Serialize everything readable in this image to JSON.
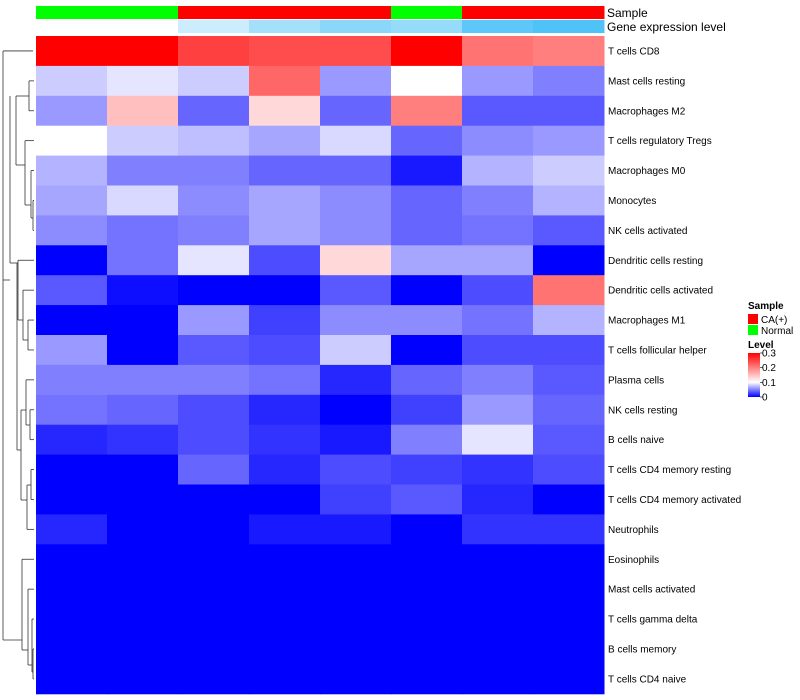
{
  "chart_data": {
    "type": "heatmap",
    "annotation_labels": [
      "Sample",
      "Gene expression level"
    ],
    "rows": [
      "T cells CD8",
      "Mast cells resting",
      "Macrophages M2",
      "T cells regulatory  Tregs",
      "Macrophages M0",
      "Monocytes",
      "NK cells activated",
      "Dendritic cells resting",
      "Dendritic cells activated",
      "Macrophages M1",
      "T cells follicular helper",
      "Plasma cells",
      "NK cells resting",
      "B cells naive",
      "T cells CD4 memory resting",
      "T cells CD4 memory activated",
      "Neutrophils",
      "Eosinophils",
      "Mast cells activated",
      "T cells gamma delta",
      "B cells memory",
      "T cells CD4 naive"
    ],
    "sample_annotation": [
      "Normal",
      "Normal",
      "CA(+)",
      "CA(+)",
      "CA(+)",
      "Normal",
      "CA(+)",
      "CA(+)"
    ],
    "expression_annotation": [
      0.0,
      0.0,
      0.08,
      0.14,
      0.18,
      0.16,
      0.25,
      0.27
    ],
    "values": [
      [
        0.3,
        0.3,
        0.25,
        0.24,
        0.24,
        0.3,
        0.21,
        0.2
      ],
      [
        0.08,
        0.09,
        0.08,
        0.22,
        0.06,
        0.1,
        0.06,
        0.05
      ],
      [
        0.06,
        0.15,
        0.04,
        0.13,
        0.04,
        0.2,
        0.035,
        0.035
      ],
      [
        0.1,
        0.08,
        0.075,
        0.065,
        0.085,
        0.04,
        0.055,
        0.06
      ],
      [
        0.07,
        0.05,
        0.05,
        0.04,
        0.04,
        0.01,
        0.07,
        0.08
      ],
      [
        0.065,
        0.085,
        0.055,
        0.065,
        0.055,
        0.04,
        0.05,
        0.07
      ],
      [
        0.055,
        0.045,
        0.05,
        0.065,
        0.055,
        0.04,
        0.045,
        0.035
      ],
      [
        0.0,
        0.045,
        0.09,
        0.03,
        0.13,
        0.065,
        0.065,
        0.0
      ],
      [
        0.035,
        0.005,
        0.0,
        0.0,
        0.035,
        0.0,
        0.03,
        0.21
      ],
      [
        0.0,
        0.0,
        0.06,
        0.025,
        0.055,
        0.055,
        0.045,
        0.07
      ],
      [
        0.06,
        0.0,
        0.035,
        0.03,
        0.08,
        0.0,
        0.03,
        0.03
      ],
      [
        0.05,
        0.05,
        0.05,
        0.045,
        0.015,
        0.04,
        0.05,
        0.035
      ],
      [
        0.045,
        0.04,
        0.03,
        0.015,
        0.0,
        0.025,
        0.06,
        0.04
      ],
      [
        0.015,
        0.02,
        0.03,
        0.02,
        0.01,
        0.05,
        0.09,
        0.035
      ],
      [
        0.0,
        0.0,
        0.04,
        0.015,
        0.03,
        0.025,
        0.02,
        0.03
      ],
      [
        0.0,
        0.0,
        0.0,
        0.0,
        0.025,
        0.035,
        0.015,
        0.0
      ],
      [
        0.015,
        0.0,
        0.0,
        0.01,
        0.01,
        0.0,
        0.02,
        0.02
      ],
      [
        0.0,
        0.0,
        0.0,
        0.0,
        0.0,
        0.0,
        0.0,
        0.0
      ],
      [
        0.0,
        0.0,
        0.0,
        0.0,
        0.0,
        0.0,
        0.0,
        0.0
      ],
      [
        0.0,
        0.0,
        0.0,
        0.0,
        0.0,
        0.0,
        0.0,
        0.0
      ],
      [
        0.0,
        0.0,
        0.0,
        0.0,
        0.0,
        0.0,
        0.0,
        0.0
      ],
      [
        0.0,
        0.0,
        0.0,
        0.0,
        0.0,
        0.0,
        0.0,
        0.0
      ]
    ],
    "color_scale": {
      "min": 0,
      "mid": 0.1,
      "max": 0.3,
      "low_color": "#0000ff",
      "mid_color": "#ffffff",
      "high_color": "#ff0000"
    },
    "legend": {
      "sample_title": "Sample",
      "sample_entries": [
        {
          "label": "CA(+)",
          "color": "#ff0000"
        },
        {
          "label": "Normal",
          "color": "#00ff00"
        }
      ],
      "level_title": "Level",
      "level_ticks": [
        {
          "value": 0.3,
          "label": "0.3"
        },
        {
          "value": 0.2,
          "label": "0.2"
        },
        {
          "value": 0.1,
          "label": "0.1"
        },
        {
          "value": 0.0,
          "label": "0"
        }
      ],
      "placement": "right"
    },
    "expression_colors": {
      "low": "#ffffff",
      "high": "#4fc3f7"
    },
    "row_dendrogram": true
  }
}
